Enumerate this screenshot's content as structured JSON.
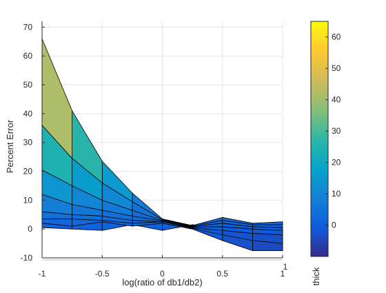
{
  "chart_data": {
    "type": "area",
    "title": "",
    "xlabel": "log(ratio of db1/db2)",
    "ylabel": "Percent Error",
    "xlim": [
      -1,
      1
    ],
    "ylim": [
      -10,
      72
    ],
    "xticks": [
      -1,
      -0.5,
      0,
      0.5,
      1
    ],
    "xtick_labels": [
      "-1",
      "-0.5",
      "0",
      "0.5",
      "1"
    ],
    "yticks": [
      -10,
      0,
      10,
      20,
      30,
      40,
      50,
      60,
      70
    ],
    "ytick_labels": [
      "-10",
      "0",
      "10",
      "20",
      "30",
      "40",
      "50",
      "60",
      "70"
    ],
    "grid": true,
    "x": [
      -1,
      -0.75,
      -0.5,
      -0.25,
      0,
      0.25,
      0.5,
      0.75,
      1
    ],
    "series": [
      {
        "values": [
          66,
          41,
          23.5,
          12.5,
          3.5,
          1.2,
          4,
          2,
          2.5
        ]
      },
      {
        "values": [
          36,
          24.5,
          16,
          9.5,
          3.3,
          1.0,
          3,
          1.5,
          1.5
        ]
      },
      {
        "values": [
          20.5,
          15,
          10,
          6.5,
          3,
          0.8,
          2,
          0.8,
          0.5
        ]
      },
      {
        "values": [
          12,
          8.5,
          6.5,
          4.5,
          2.8,
          0.6,
          0.8,
          0,
          -0.5
        ]
      },
      {
        "values": [
          6,
          5,
          4.5,
          3,
          2.5,
          0.4,
          -0.5,
          -1.5,
          -2
        ]
      },
      {
        "values": [
          3.5,
          3.5,
          3,
          2,
          2.5,
          0.2,
          -2,
          -4,
          -5
        ]
      },
      {
        "values": [
          2,
          1,
          2.5,
          1,
          2,
          0,
          -4,
          -7.5,
          -7.5
        ]
      },
      {
        "values": [
          0.5,
          0,
          -0.5,
          1.5,
          -0.5,
          1.5,
          0.5,
          0,
          0
        ]
      }
    ],
    "colorbar": {
      "limits": [
        -10,
        65
      ],
      "ticks": [
        0,
        10,
        20,
        30,
        40,
        50,
        60
      ],
      "tick_labels": [
        "0",
        "10",
        "20",
        "30",
        "40",
        "50",
        "60"
      ],
      "colormap": "parula",
      "label": "thick"
    },
    "colors": {
      "axis": "#262626",
      "grid": "#e6e6e6",
      "edge": "#000000"
    }
  }
}
